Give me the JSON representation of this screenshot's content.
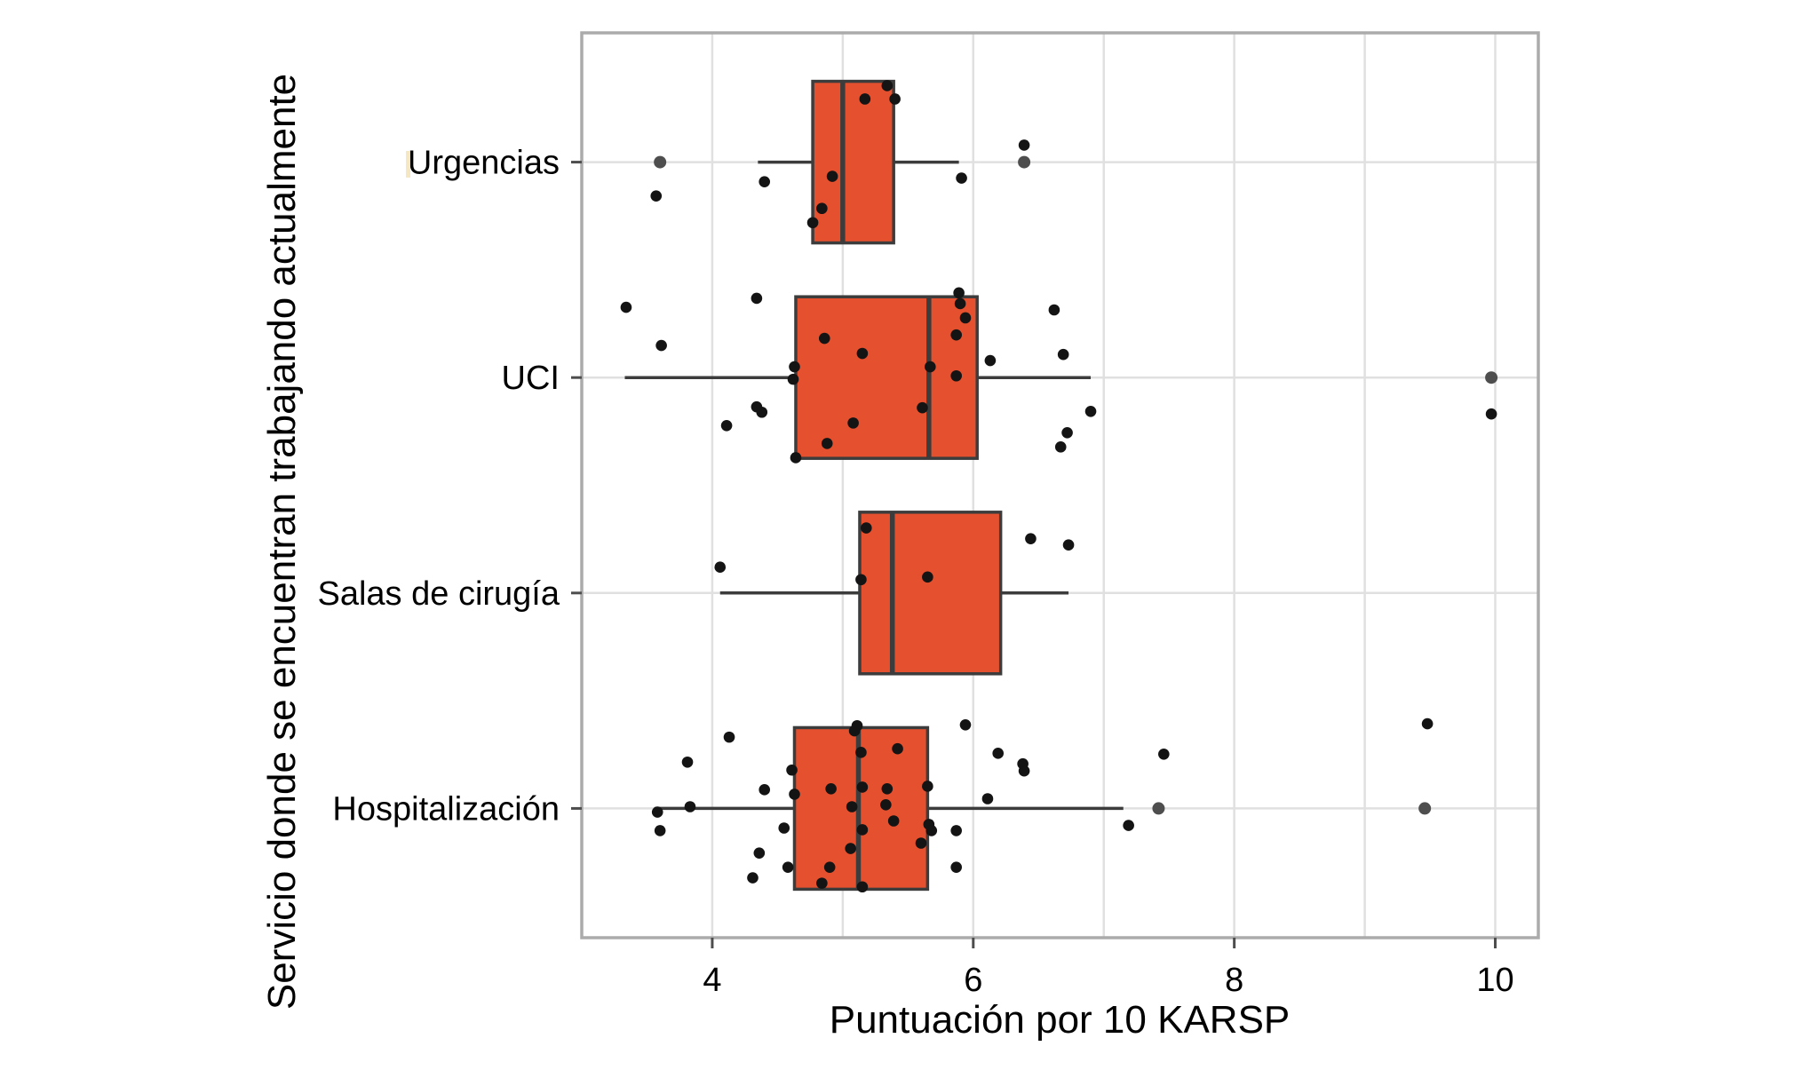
{
  "chart_data": {
    "type": "boxplot",
    "orientation": "horizontal",
    "title": "",
    "xlabel": "Puntuación por 10 KARSP",
    "ylabel": "Servicio donde se encuentran trabajando actualmente",
    "categories": [
      "Urgencias",
      "UCI",
      "Salas de cirugía",
      "Hospitalización"
    ],
    "xlim": [
      3.0,
      10.33
    ],
    "x_ticks": [
      4,
      6,
      8,
      10
    ],
    "x_gridlines": [
      4,
      5,
      6,
      7,
      8,
      9,
      10
    ],
    "grid": "on",
    "legend": "none",
    "boxes": [
      {
        "category": "Urgencias",
        "whisker_low": 4.35,
        "q1": 4.77,
        "median": 5.0,
        "q3": 5.39,
        "whisker_high": 5.89,
        "outliers": [
          3.6,
          6.39
        ]
      },
      {
        "category": "UCI",
        "whisker_low": 3.33,
        "q1": 4.64,
        "median": 5.66,
        "q3": 6.03,
        "whisker_high": 6.9,
        "outliers": [
          9.97
        ]
      },
      {
        "category": "Salas de cirugía",
        "whisker_low": 4.06,
        "q1": 5.13,
        "median": 5.38,
        "q3": 6.21,
        "whisker_high": 6.73,
        "outliers": []
      },
      {
        "category": "Hospitalización",
        "whisker_low": 3.56,
        "q1": 4.63,
        "median": 5.12,
        "q3": 5.65,
        "whisker_high": 7.15,
        "outliers": [
          7.42,
          9.46
        ]
      }
    ],
    "jitter_points": [
      {
        "category": "Urgencias",
        "points": [
          [
            3.57,
            0.157
          ],
          [
            4.4,
            0.091
          ],
          [
            4.92,
            0.066
          ],
          [
            4.84,
            0.215
          ],
          [
            4.77,
            0.281
          ],
          [
            5.17,
            -0.293
          ],
          [
            5.34,
            -0.355
          ],
          [
            5.4,
            -0.293
          ],
          [
            5.91,
            0.074
          ],
          [
            6.39,
            -0.079
          ]
        ]
      },
      {
        "category": "UCI",
        "points": [
          [
            3.34,
            -0.326
          ],
          [
            3.61,
            -0.149
          ],
          [
            4.34,
            -0.368
          ],
          [
            4.34,
            0.136
          ],
          [
            4.38,
            0.161
          ],
          [
            4.11,
            0.223
          ],
          [
            4.63,
            -0.05
          ],
          [
            4.62,
            0.008
          ],
          [
            4.64,
            0.372
          ],
          [
            4.86,
            -0.182
          ],
          [
            5.15,
            -0.112
          ],
          [
            5.08,
            0.211
          ],
          [
            4.88,
            0.306
          ],
          [
            5.67,
            -0.05
          ],
          [
            5.61,
            0.14
          ],
          [
            5.89,
            -0.393
          ],
          [
            5.9,
            -0.343
          ],
          [
            5.94,
            -0.277
          ],
          [
            5.87,
            -0.198
          ],
          [
            5.87,
            -0.008
          ],
          [
            6.13,
            -0.079
          ],
          [
            6.62,
            -0.314
          ],
          [
            6.69,
            -0.107
          ],
          [
            6.9,
            0.157
          ],
          [
            6.72,
            0.256
          ],
          [
            6.67,
            0.322
          ],
          [
            9.97,
            0.169
          ]
        ]
      },
      {
        "category": "Salas de cirugía",
        "points": [
          [
            4.06,
            -0.12
          ],
          [
            5.18,
            -0.302
          ],
          [
            5.14,
            -0.062
          ],
          [
            5.65,
            -0.074
          ],
          [
            6.44,
            -0.252
          ],
          [
            6.73,
            -0.223
          ]
        ]
      },
      {
        "category": "Hospitalización",
        "points": [
          [
            3.58,
            0.017
          ],
          [
            3.6,
            0.103
          ],
          [
            3.83,
            -0.008
          ],
          [
            3.81,
            -0.215
          ],
          [
            4.13,
            -0.331
          ],
          [
            4.4,
            -0.087
          ],
          [
            4.36,
            0.207
          ],
          [
            4.31,
            0.322
          ],
          [
            4.61,
            -0.178
          ],
          [
            4.63,
            -0.066
          ],
          [
            4.55,
            0.091
          ],
          [
            4.58,
            0.273
          ],
          [
            4.91,
            -0.091
          ],
          [
            4.9,
            0.273
          ],
          [
            4.84,
            0.347
          ],
          [
            5.09,
            -0.36
          ],
          [
            5.11,
            -0.384
          ],
          [
            5.14,
            -0.26
          ],
          [
            5.15,
            -0.099
          ],
          [
            5.07,
            -0.008
          ],
          [
            5.15,
            0.099
          ],
          [
            5.06,
            0.186
          ],
          [
            5.15,
            0.364
          ],
          [
            5.42,
            -0.277
          ],
          [
            5.34,
            -0.091
          ],
          [
            5.33,
            -0.017
          ],
          [
            5.39,
            0.058
          ],
          [
            5.65,
            -0.103
          ],
          [
            5.66,
            0.074
          ],
          [
            5.68,
            0.103
          ],
          [
            5.6,
            0.161
          ],
          [
            5.87,
            0.103
          ],
          [
            5.87,
            0.273
          ],
          [
            5.94,
            -0.388
          ],
          [
            6.11,
            -0.045
          ],
          [
            6.19,
            -0.256
          ],
          [
            6.38,
            -0.207
          ],
          [
            6.39,
            -0.174
          ],
          [
            7.46,
            -0.252
          ],
          [
            7.19,
            0.079
          ],
          [
            9.48,
            -0.393
          ]
        ]
      }
    ]
  },
  "colors": {
    "box_fill": "#E5512F",
    "box_stroke": "#3C3C3C",
    "median": "#3C3C3C",
    "whisker": "#3C3C3C",
    "point": "#141414",
    "outlier_point": "#4E4E4E",
    "gridline": "#E0E0E0",
    "panel_border": "#ABABAB",
    "tick": "#4D4D4D",
    "text": "#000000",
    "background": "#FFFFFF",
    "artifact": "#F2E3B6"
  }
}
